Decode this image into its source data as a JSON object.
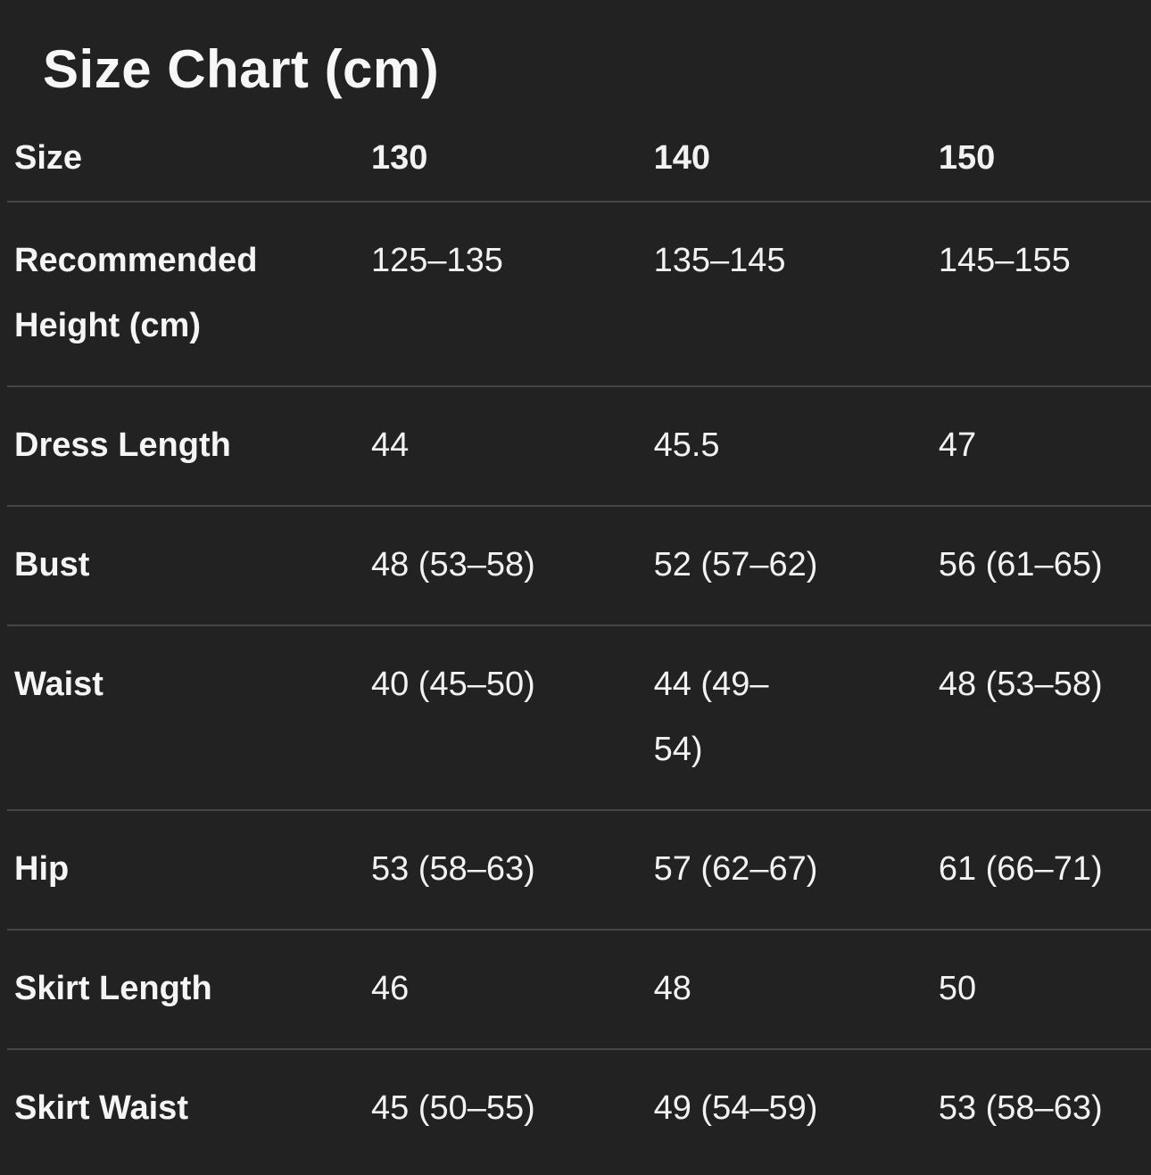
{
  "page": {
    "title": "Size Chart (cm)"
  },
  "colors": {
    "background": "#222222",
    "text": "#f2f2f2",
    "divider": "#464646"
  },
  "table": {
    "header": {
      "label": "Size",
      "columns": [
        "130",
        "140",
        "150"
      ]
    },
    "rows": [
      {
        "label": "Recommended Height (cm)",
        "values": [
          "125–135",
          "135–145",
          "145–155"
        ]
      },
      {
        "label": "Dress Length",
        "values": [
          "44",
          "45.5",
          "47"
        ]
      },
      {
        "label": "Bust",
        "values": [
          "48 (53–58)",
          "52 (57–62)",
          "56 (61–65)"
        ]
      },
      {
        "label": "Waist",
        "values": [
          "40 (45–50)",
          "44 (49–\n54)",
          "48 (53–58)"
        ]
      },
      {
        "label": "Hip",
        "values": [
          "53 (58–63)",
          "57 (62–67)",
          "61 (66–71)"
        ]
      },
      {
        "label": "Skirt Length",
        "values": [
          "46",
          "48",
          "50"
        ]
      },
      {
        "label": "Skirt Waist",
        "values": [
          "45 (50–55)",
          "49 (54–59)",
          "53 (58–63)"
        ]
      }
    ]
  }
}
